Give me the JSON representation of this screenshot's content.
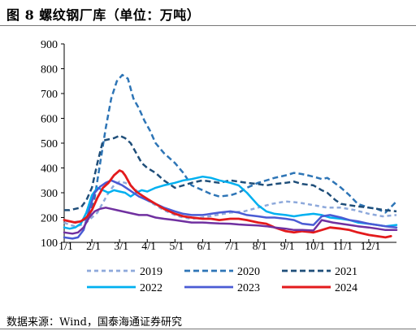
{
  "figure": {
    "title": "图 8 螺纹钢厂库（单位：万吨）",
    "source": "数据来源：Wind，国泰海通证券研究"
  },
  "chart_data": {
    "type": "line",
    "xlim": [
      0,
      12
    ],
    "ylim": [
      100,
      900
    ],
    "y_ticks": [
      100,
      200,
      300,
      400,
      500,
      600,
      700,
      800,
      900
    ],
    "x_ticks": [
      {
        "label": "1/1",
        "x": 0
      },
      {
        "label": "2/1",
        "x": 1
      },
      {
        "label": "3/1",
        "x": 2
      },
      {
        "label": "4/1",
        "x": 3
      },
      {
        "label": "5/1",
        "x": 4
      },
      {
        "label": "6/1",
        "x": 5
      },
      {
        "label": "7/1",
        "x": 6
      },
      {
        "label": "8/1",
        "x": 7
      },
      {
        "label": "9/1",
        "x": 8
      },
      {
        "label": "10/1",
        "x": 9
      },
      {
        "label": "11/1",
        "x": 10
      },
      {
        "label": "12/1",
        "x": 11
      }
    ],
    "legend_position": "bottom",
    "series": [
      {
        "name": "2019",
        "color": "#8EA9DB",
        "dash": "5,4",
        "width": 2.5,
        "points": [
          [
            0,
            180
          ],
          [
            0.2,
            170
          ],
          [
            0.4,
            165
          ],
          [
            0.6,
            170
          ],
          [
            0.8,
            180
          ],
          [
            1.0,
            200
          ],
          [
            1.2,
            220
          ],
          [
            1.4,
            260
          ],
          [
            1.6,
            300
          ],
          [
            1.8,
            330
          ],
          [
            2.0,
            345
          ],
          [
            2.2,
            340
          ],
          [
            2.4,
            330
          ],
          [
            2.6,
            310
          ],
          [
            2.8,
            290
          ],
          [
            3.0,
            270
          ],
          [
            3.3,
            250
          ],
          [
            3.6,
            230
          ],
          [
            4.0,
            210
          ],
          [
            4.3,
            200
          ],
          [
            4.6,
            195
          ],
          [
            5.0,
            200
          ],
          [
            5.5,
            210
          ],
          [
            6.0,
            220
          ],
          [
            6.5,
            225
          ],
          [
            7.0,
            240
          ],
          [
            7.5,
            255
          ],
          [
            8.0,
            265
          ],
          [
            8.5,
            260
          ],
          [
            9.0,
            250
          ],
          [
            9.5,
            240
          ],
          [
            10.0,
            240
          ],
          [
            10.5,
            230
          ],
          [
            11.0,
            215
          ],
          [
            11.5,
            205
          ],
          [
            12.0,
            210
          ]
        ]
      },
      {
        "name": "2020",
        "color": "#2E75B6",
        "dash": "7,4",
        "width": 2.5,
        "points": [
          [
            0,
            190
          ],
          [
            0.3,
            180
          ],
          [
            0.6,
            185
          ],
          [
            0.9,
            200
          ],
          [
            1.1,
            280
          ],
          [
            1.3,
            420
          ],
          [
            1.5,
            560
          ],
          [
            1.7,
            680
          ],
          [
            1.9,
            750
          ],
          [
            2.1,
            775
          ],
          [
            2.3,
            760
          ],
          [
            2.5,
            680
          ],
          [
            2.7,
            640
          ],
          [
            2.9,
            590
          ],
          [
            3.1,
            550
          ],
          [
            3.3,
            500
          ],
          [
            3.6,
            460
          ],
          [
            4.0,
            420
          ],
          [
            4.3,
            380
          ],
          [
            4.6,
            330
          ],
          [
            5.0,
            310
          ],
          [
            5.3,
            295
          ],
          [
            5.6,
            285
          ],
          [
            6.0,
            290
          ],
          [
            6.3,
            300
          ],
          [
            6.6,
            320
          ],
          [
            7.0,
            340
          ],
          [
            7.3,
            350
          ],
          [
            7.6,
            360
          ],
          [
            8.0,
            370
          ],
          [
            8.3,
            380
          ],
          [
            8.6,
            375
          ],
          [
            9.0,
            365
          ],
          [
            9.3,
            355
          ],
          [
            9.5,
            360
          ],
          [
            9.7,
            345
          ],
          [
            10.0,
            320
          ],
          [
            10.3,
            290
          ],
          [
            10.6,
            255
          ],
          [
            11.0,
            240
          ],
          [
            11.3,
            235
          ],
          [
            11.6,
            220
          ],
          [
            12.0,
            265
          ]
        ]
      },
      {
        "name": "2021",
        "color": "#1F4E79",
        "dash": "7,4",
        "width": 2.5,
        "points": [
          [
            0,
            230
          ],
          [
            0.2,
            230
          ],
          [
            0.4,
            235
          ],
          [
            0.6,
            240
          ],
          [
            0.8,
            270
          ],
          [
            1.0,
            320
          ],
          [
            1.2,
            420
          ],
          [
            1.4,
            510
          ],
          [
            1.6,
            515
          ],
          [
            1.8,
            520
          ],
          [
            2.0,
            530
          ],
          [
            2.2,
            520
          ],
          [
            2.4,
            500
          ],
          [
            2.6,
            460
          ],
          [
            2.8,
            420
          ],
          [
            3.0,
            400
          ],
          [
            3.3,
            380
          ],
          [
            3.6,
            350
          ],
          [
            4.0,
            320
          ],
          [
            4.3,
            330
          ],
          [
            4.6,
            340
          ],
          [
            5.0,
            350
          ],
          [
            5.3,
            345
          ],
          [
            5.6,
            340
          ],
          [
            6.0,
            350
          ],
          [
            6.3,
            345
          ],
          [
            6.6,
            340
          ],
          [
            7.0,
            335
          ],
          [
            7.3,
            330
          ],
          [
            7.6,
            335
          ],
          [
            8.0,
            340
          ],
          [
            8.3,
            345
          ],
          [
            8.6,
            335
          ],
          [
            9.0,
            330
          ],
          [
            9.3,
            310
          ],
          [
            9.5,
            300
          ],
          [
            9.8,
            270
          ],
          [
            10.0,
            255
          ],
          [
            10.3,
            250
          ],
          [
            10.6,
            245
          ],
          [
            11.0,
            240
          ],
          [
            11.3,
            235
          ],
          [
            11.6,
            230
          ],
          [
            12.0,
            225
          ]
        ]
      },
      {
        "name": "2022",
        "color": "#00B0F0",
        "dash": "",
        "width": 2.5,
        "points": [
          [
            0,
            160
          ],
          [
            0.2,
            155
          ],
          [
            0.4,
            160
          ],
          [
            0.6,
            175
          ],
          [
            0.8,
            220
          ],
          [
            1.0,
            290
          ],
          [
            1.2,
            320
          ],
          [
            1.4,
            310
          ],
          [
            1.6,
            300
          ],
          [
            1.8,
            310
          ],
          [
            2.0,
            305
          ],
          [
            2.2,
            300
          ],
          [
            2.4,
            285
          ],
          [
            2.6,
            300
          ],
          [
            2.8,
            310
          ],
          [
            3.0,
            305
          ],
          [
            3.3,
            320
          ],
          [
            3.6,
            330
          ],
          [
            4.0,
            340
          ],
          [
            4.3,
            350
          ],
          [
            4.6,
            355
          ],
          [
            5.0,
            365
          ],
          [
            5.3,
            360
          ],
          [
            5.6,
            350
          ],
          [
            6.0,
            340
          ],
          [
            6.3,
            330
          ],
          [
            6.6,
            300
          ],
          [
            7.0,
            250
          ],
          [
            7.3,
            225
          ],
          [
            7.6,
            215
          ],
          [
            8.0,
            210
          ],
          [
            8.3,
            205
          ],
          [
            8.6,
            210
          ],
          [
            9.0,
            215
          ],
          [
            9.3,
            210
          ],
          [
            9.6,
            200
          ],
          [
            10.0,
            195
          ],
          [
            10.3,
            190
          ],
          [
            10.6,
            180
          ],
          [
            11.0,
            175
          ],
          [
            11.3,
            170
          ],
          [
            11.6,
            165
          ],
          [
            12.0,
            170
          ]
        ]
      },
      {
        "name": "2023",
        "color": "#4A5BD4",
        "dash": "",
        "width": 2.5,
        "points": [
          [
            0,
            120
          ],
          [
            0.3,
            115
          ],
          [
            0.5,
            120
          ],
          [
            0.7,
            150
          ],
          [
            0.9,
            230
          ],
          [
            1.1,
            300
          ],
          [
            1.3,
            325
          ],
          [
            1.5,
            340
          ],
          [
            1.7,
            350
          ],
          [
            1.9,
            340
          ],
          [
            2.1,
            330
          ],
          [
            2.3,
            315
          ],
          [
            2.5,
            300
          ],
          [
            2.7,
            285
          ],
          [
            3.0,
            270
          ],
          [
            3.3,
            255
          ],
          [
            3.6,
            240
          ],
          [
            4.0,
            225
          ],
          [
            4.3,
            215
          ],
          [
            4.6,
            210
          ],
          [
            5.0,
            210
          ],
          [
            5.3,
            215
          ],
          [
            5.6,
            220
          ],
          [
            6.0,
            225
          ],
          [
            6.3,
            220
          ],
          [
            6.6,
            210
          ],
          [
            7.0,
            205
          ],
          [
            7.3,
            200
          ],
          [
            7.6,
            200
          ],
          [
            8.0,
            195
          ],
          [
            8.3,
            190
          ],
          [
            8.6,
            175
          ],
          [
            9.0,
            170
          ],
          [
            9.3,
            205
          ],
          [
            9.6,
            210
          ],
          [
            10.0,
            200
          ],
          [
            10.3,
            190
          ],
          [
            10.6,
            185
          ],
          [
            11.0,
            175
          ],
          [
            11.3,
            170
          ],
          [
            11.6,
            165
          ],
          [
            12.0,
            160
          ]
        ]
      },
      {
        "name": "2024",
        "color": "#E31A1C",
        "dash": "",
        "width": 2.8,
        "points": [
          [
            0,
            190
          ],
          [
            0.2,
            185
          ],
          [
            0.4,
            180
          ],
          [
            0.6,
            185
          ],
          [
            0.8,
            200
          ],
          [
            1.0,
            230
          ],
          [
            1.2,
            280
          ],
          [
            1.4,
            320
          ],
          [
            1.6,
            340
          ],
          [
            1.8,
            370
          ],
          [
            2.0,
            390
          ],
          [
            2.1,
            385
          ],
          [
            2.2,
            370
          ],
          [
            2.4,
            330
          ],
          [
            2.6,
            305
          ],
          [
            2.8,
            290
          ],
          [
            3.0,
            275
          ],
          [
            3.3,
            255
          ],
          [
            3.6,
            235
          ],
          [
            4.0,
            215
          ],
          [
            4.3,
            205
          ],
          [
            4.6,
            200
          ],
          [
            5.0,
            195
          ],
          [
            5.3,
            195
          ],
          [
            5.6,
            190
          ],
          [
            6.0,
            195
          ],
          [
            6.3,
            195
          ],
          [
            6.6,
            190
          ],
          [
            7.0,
            180
          ],
          [
            7.3,
            175
          ],
          [
            7.6,
            160
          ],
          [
            8.0,
            145
          ],
          [
            8.3,
            140
          ],
          [
            8.6,
            145
          ],
          [
            9.0,
            140
          ],
          [
            9.3,
            150
          ],
          [
            9.6,
            160
          ],
          [
            10.0,
            155
          ],
          [
            10.3,
            150
          ],
          [
            10.6,
            140
          ],
          [
            11.0,
            130
          ],
          [
            11.3,
            125
          ],
          [
            11.6,
            120
          ],
          [
            11.8,
            125
          ]
        ]
      },
      {
        "name": "",
        "color": "#7030A0",
        "dash": "",
        "width": 2.5,
        "points": [
          [
            0,
            140
          ],
          [
            0.3,
            135
          ],
          [
            0.5,
            140
          ],
          [
            0.7,
            160
          ],
          [
            0.9,
            200
          ],
          [
            1.1,
            225
          ],
          [
            1.3,
            235
          ],
          [
            1.5,
            240
          ],
          [
            1.7,
            235
          ],
          [
            1.9,
            230
          ],
          [
            2.1,
            225
          ],
          [
            2.3,
            220
          ],
          [
            2.5,
            215
          ],
          [
            2.7,
            210
          ],
          [
            3.0,
            210
          ],
          [
            3.3,
            200
          ],
          [
            3.6,
            195
          ],
          [
            4.0,
            190
          ],
          [
            4.3,
            185
          ],
          [
            4.6,
            180
          ],
          [
            5.0,
            180
          ],
          [
            5.3,
            178
          ],
          [
            5.6,
            176
          ],
          [
            6.0,
            175
          ],
          [
            6.3,
            172
          ],
          [
            6.6,
            170
          ],
          [
            7.0,
            168
          ],
          [
            7.3,
            165
          ],
          [
            7.6,
            160
          ],
          [
            8.0,
            155
          ],
          [
            8.3,
            150
          ],
          [
            8.6,
            150
          ],
          [
            9.0,
            148
          ],
          [
            9.3,
            190
          ],
          [
            9.5,
            185
          ],
          [
            9.7,
            180
          ],
          [
            10.0,
            175
          ],
          [
            10.3,
            170
          ],
          [
            10.6,
            165
          ],
          [
            11.0,
            160
          ],
          [
            11.3,
            155
          ],
          [
            11.6,
            150
          ],
          [
            12.0,
            150
          ]
        ]
      }
    ]
  }
}
